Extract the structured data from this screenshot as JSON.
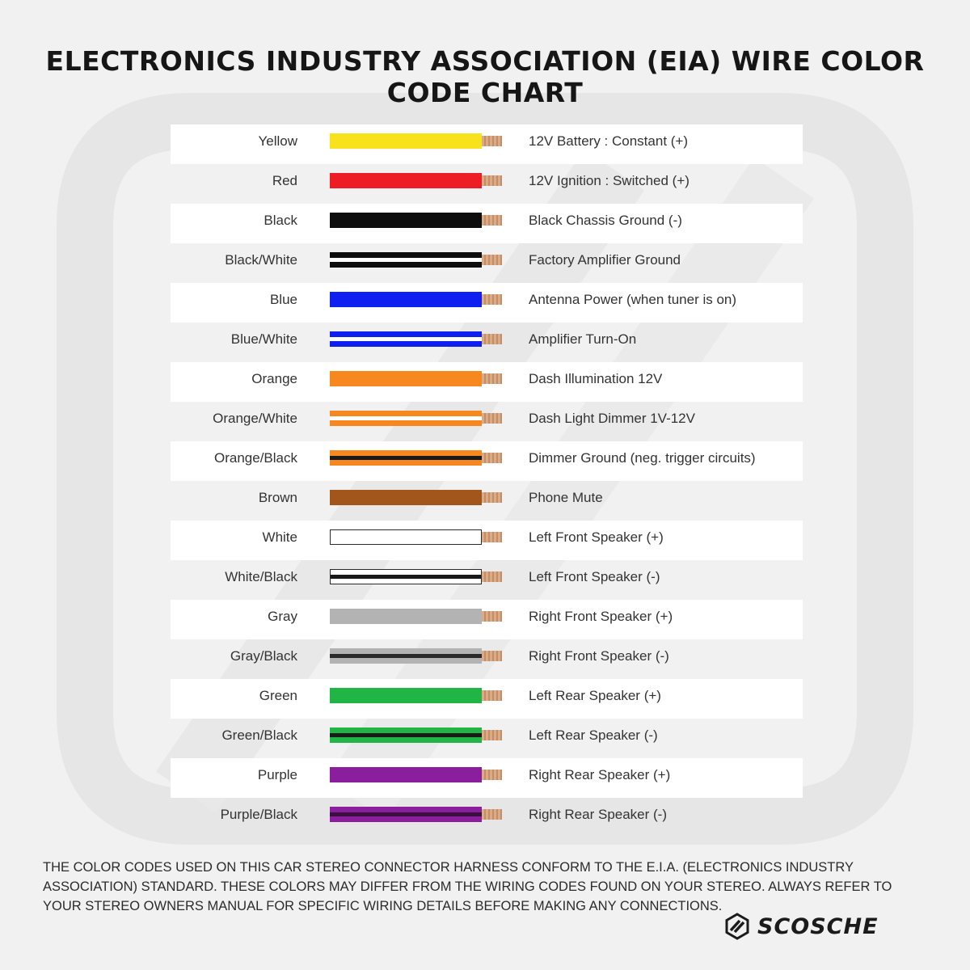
{
  "title": "ELECTRONICS INDUSTRY ASSOCIATION (EIA) WIRE COLOR CODE CHART",
  "rows": [
    {
      "color_name": "Yellow",
      "function": "12V Battery : Constant (+)",
      "main": "#f7e21b",
      "stripe": null
    },
    {
      "color_name": "Red",
      "function": "12V Ignition : Switched (+)",
      "main": "#ee1c24",
      "stripe": null
    },
    {
      "color_name": "Black",
      "function": "Black Chassis Ground (-)",
      "main": "#0d0d0d",
      "stripe": null
    },
    {
      "color_name": "Black/White",
      "function": "Factory Amplifier Ground",
      "main": "#0d0d0d",
      "stripe": "#ffffff"
    },
    {
      "color_name": "Blue",
      "function": "Antenna Power (when tuner is on)",
      "main": "#0f1ff0",
      "stripe": null
    },
    {
      "color_name": "Blue/White",
      "function": "Amplifier Turn-On",
      "main": "#0f1ff0",
      "stripe": "#ffffff"
    },
    {
      "color_name": "Orange",
      "function": "Dash Illumination 12V",
      "main": "#f7871f",
      "stripe": null
    },
    {
      "color_name": "Orange/White",
      "function": "Dash Light Dimmer 1V-12V",
      "main": "#f7871f",
      "stripe": "#ffffff"
    },
    {
      "color_name": "Orange/Black",
      "function": "Dimmer Ground (neg. trigger circuits)",
      "main": "#f7871f",
      "stripe": "#1a1a1a"
    },
    {
      "color_name": "Brown",
      "function": "Phone Mute",
      "main": "#a3561c",
      "stripe": null
    },
    {
      "color_name": "White",
      "function": "Left Front Speaker (+)",
      "main": "#ffffff",
      "stripe": null
    },
    {
      "color_name": "White/Black",
      "function": "Left Front Speaker (-)",
      "main": "#ffffff",
      "stripe": "#1a1a1a"
    },
    {
      "color_name": "Gray",
      "function": "Right Front Speaker (+)",
      "main": "#b3b3b3",
      "stripe": null
    },
    {
      "color_name": "Gray/Black",
      "function": "Right Front Speaker (-)",
      "main": "#b3b3b3",
      "stripe": "#2a2a2a"
    },
    {
      "color_name": "Green",
      "function": "Left Rear Speaker (+)",
      "main": "#20b545",
      "stripe": null
    },
    {
      "color_name": "Green/Black",
      "function": "Left Rear Speaker (-)",
      "main": "#20b545",
      "stripe": "#1a1a1a"
    },
    {
      "color_name": "Purple",
      "function": "Right Rear Speaker (+)",
      "main": "#8b1e9c",
      "stripe": null
    },
    {
      "color_name": "Purple/Black",
      "function": "Right Rear Speaker (-)",
      "main": "#8b1e9c",
      "stripe": "#3a1040"
    }
  ],
  "footer": "THE COLOR CODES USED ON THIS CAR STEREO CONNECTOR HARNESS CONFORM TO THE E.I.A. (ELECTRONICS INDUSTRY ASSOCIATION) STANDARD. THESE COLORS MAY DIFFER FROM THE WIRING CODES FOUND ON YOUR STEREO. ALWAYS REFER TO YOUR STEREO OWNERS MANUAL FOR SPECIFIC WIRING DETAILS BEFORE MAKING ANY CONNECTIONS.",
  "brand": "SCOSCHE"
}
